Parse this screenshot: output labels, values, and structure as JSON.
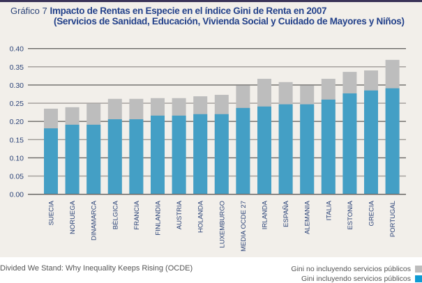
{
  "header": {
    "prefix": "Gráfico 7",
    "title": "Impacto de Rentas en Especie en el índice Gini de Renta en 2007",
    "subtitle": "(Servicios de Sanidad, Educación, Vivienda Social y Cuidado de Mayores y Niños)"
  },
  "source": "Divided We Stand: Why Inequality Keeps Rising (OCDE)",
  "colors": {
    "excluding": "#bdbdbd",
    "including": "#449fc5",
    "legend_including": "#0e9bd3",
    "axis_text": "#2b4378"
  },
  "chart_data": {
    "type": "bar",
    "stacked": false,
    "overlay": true,
    "categories": [
      "SUECIA",
      "NORUEGA",
      "DINAMARCA",
      "BÈLGICA",
      "FRANCIA",
      "FINLANDIA",
      "AUSTRIA",
      "HOLANDA",
      "LUXEMBURGO",
      "MEDIA OCDE 27",
      "IRLANDA",
      "ESPAÑA",
      "ALEMANIA",
      "ITALIA",
      "ESTONIA",
      "GRECIA",
      "PORTUGAL"
    ],
    "series": [
      {
        "name": "Gini no incluyendo servicios públicos",
        "values": [
          0.235,
          0.239,
          0.249,
          0.262,
          0.262,
          0.264,
          0.264,
          0.269,
          0.273,
          0.299,
          0.317,
          0.308,
          0.299,
          0.317,
          0.336,
          0.34,
          0.369
        ]
      },
      {
        "name": "Gini incluyendo servicios públicos",
        "values": [
          0.181,
          0.191,
          0.191,
          0.206,
          0.206,
          0.216,
          0.216,
          0.22,
          0.22,
          0.237,
          0.241,
          0.247,
          0.247,
          0.26,
          0.277,
          0.285,
          0.291
        ]
      }
    ],
    "ylim": [
      0,
      0.4
    ],
    "yticks": [
      "0.00",
      "0.05",
      "0.10",
      "0.15",
      "0.20",
      "0.25",
      "0.30",
      "0.35",
      "0.40"
    ],
    "grid": true,
    "legend": "bottom-right"
  }
}
